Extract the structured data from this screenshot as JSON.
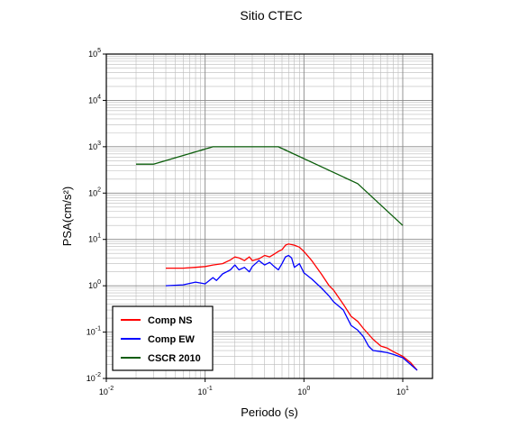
{
  "chart_data": {
    "type": "line",
    "title": "Sitio CTEC",
    "xlabel": "Periodo (s)",
    "ylabel": "PSA(cm/s²)",
    "x_scale": "log",
    "y_scale": "log",
    "xlim": [
      0.01,
      20
    ],
    "ylim": [
      0.01,
      100000
    ],
    "grid": true,
    "legend_position": "bottom-left",
    "x_ticks": [
      {
        "base": "10",
        "exp": "-2"
      },
      {
        "base": "10",
        "exp": "-1"
      },
      {
        "base": "10",
        "exp": "0"
      },
      {
        "base": "10",
        "exp": "1"
      }
    ],
    "y_ticks": [
      {
        "base": "10",
        "exp": "-2"
      },
      {
        "base": "10",
        "exp": "-1"
      },
      {
        "base": "10",
        "exp": "0"
      },
      {
        "base": "10",
        "exp": "1"
      },
      {
        "base": "10",
        "exp": "2"
      },
      {
        "base": "10",
        "exp": "3"
      },
      {
        "base": "10",
        "exp": "4"
      },
      {
        "base": "10",
        "exp": "5"
      }
    ],
    "series": [
      {
        "name": "Comp NS",
        "color": "#ff0000",
        "x": [
          0.04,
          0.06,
          0.08,
          0.1,
          0.12,
          0.15,
          0.18,
          0.2,
          0.22,
          0.25,
          0.28,
          0.3,
          0.35,
          0.4,
          0.45,
          0.5,
          0.55,
          0.6,
          0.65,
          0.7,
          0.8,
          0.9,
          1.0,
          1.2,
          1.5,
          1.8,
          2.0,
          2.5,
          3.0,
          3.5,
          4.0,
          5.0,
          6.0,
          7.0,
          8.0,
          10.0,
          12.0,
          14.0
        ],
        "y": [
          2.4,
          2.4,
          2.5,
          2.6,
          2.8,
          3.0,
          3.6,
          4.2,
          4.0,
          3.5,
          4.2,
          3.5,
          3.8,
          4.5,
          4.2,
          4.8,
          5.5,
          6.0,
          7.5,
          8.0,
          7.5,
          6.8,
          5.5,
          3.5,
          1.8,
          1.0,
          0.8,
          0.4,
          0.22,
          0.17,
          0.12,
          0.07,
          0.05,
          0.045,
          0.038,
          0.03,
          0.022,
          0.015
        ]
      },
      {
        "name": "Comp EW",
        "color": "#0000ff",
        "x": [
          0.04,
          0.06,
          0.08,
          0.1,
          0.12,
          0.13,
          0.15,
          0.18,
          0.2,
          0.22,
          0.25,
          0.28,
          0.3,
          0.35,
          0.4,
          0.45,
          0.5,
          0.55,
          0.6,
          0.65,
          0.7,
          0.75,
          0.8,
          0.9,
          1.0,
          1.2,
          1.5,
          1.8,
          2.0,
          2.5,
          3.0,
          3.5,
          4.0,
          4.5,
          5.0,
          6.0,
          7.0,
          8.0,
          10.0,
          12.0,
          14.0
        ],
        "y": [
          1.0,
          1.05,
          1.2,
          1.1,
          1.5,
          1.3,
          1.8,
          2.2,
          2.8,
          2.2,
          2.5,
          2.0,
          2.6,
          3.5,
          2.8,
          3.2,
          2.6,
          2.2,
          3.0,
          4.2,
          4.5,
          4.0,
          2.5,
          3.0,
          1.9,
          1.4,
          0.9,
          0.6,
          0.45,
          0.3,
          0.14,
          0.11,
          0.08,
          0.05,
          0.04,
          0.038,
          0.036,
          0.033,
          0.028,
          0.02,
          0.015
        ]
      },
      {
        "name": "CSCR 2010",
        "color": "#0b5d0b",
        "x": [
          0.02,
          0.03,
          0.12,
          0.55,
          3.5,
          10.0
        ],
        "y": [
          420,
          420,
          1000,
          1000,
          160,
          20
        ]
      }
    ]
  }
}
